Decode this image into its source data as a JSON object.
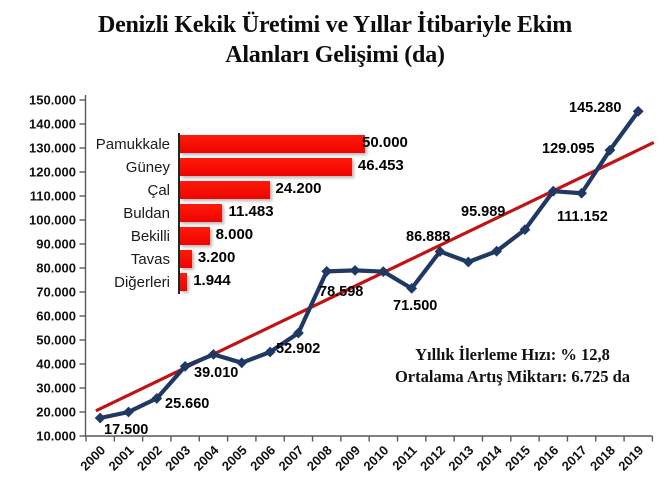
{
  "title": {
    "line1": "Denizli Kekik Üretimi ve Yıllar İtibariyle Ekim",
    "line2": "Alanları Gelişimi (da)"
  },
  "annotation": {
    "line1": "Yıllık İlerleme Hızı: % 12,8",
    "line2": "Ortalama Artış Miktarı: 6.725 da"
  },
  "colors": {
    "series_line": "#1F3864",
    "trend_line": "#C01414",
    "bar_fill": "#FF0000",
    "axis": "#595959",
    "label_text": "#000000"
  },
  "chart_data": [
    {
      "type": "line",
      "title": "Denizli Kekik Üretimi ve Yıllar İtibariyle Ekim Alanları Gelişimi (da)",
      "xlabel": "",
      "ylabel": "",
      "ylim": [
        10000,
        150000
      ],
      "ytick_step": 10000,
      "ytick_labels": [
        "10.000",
        "20.000",
        "30.000",
        "40.000",
        "50.000",
        "60.000",
        "70.000",
        "80.000",
        "90.000",
        "100.000",
        "110.000",
        "120.000",
        "130.000",
        "140.000",
        "150.000"
      ],
      "x": [
        2000,
        2001,
        2002,
        2003,
        2004,
        2005,
        2006,
        2007,
        2008,
        2009,
        2010,
        2011,
        2012,
        2013,
        2014,
        2015,
        2016,
        2017,
        2018,
        2019
      ],
      "values": [
        17500,
        20000,
        25660,
        39010,
        44000,
        40500,
        45000,
        52902,
        78598,
        79000,
        78500,
        71500,
        86888,
        82500,
        87000,
        95989,
        112000,
        111152,
        129095,
        145280
      ],
      "point_labels": {
        "2000": "17.500",
        "2002": "25.660",
        "2003": "39.010",
        "2007": "52.902",
        "2008": "78.598",
        "2011": "71.500",
        "2012": "86.888",
        "2015": "95.989",
        "2017": "111.152",
        "2018": "129.095",
        "2019": "145.280"
      },
      "trendline": {
        "x1": 1999.85,
        "v1": 20500,
        "x2": 2019.55,
        "v2": 132300
      },
      "grid": false,
      "legend": "none"
    },
    {
      "type": "bar",
      "orientation": "horizontal",
      "categories": [
        "Pamukkale",
        "Güney",
        "Çal",
        "Buldan",
        "Bekilli",
        "Tavas",
        "Diğerleri"
      ],
      "values": [
        50000,
        46453,
        24200,
        11483,
        8000,
        3200,
        1944
      ],
      "value_labels": [
        "50.000",
        "46.453",
        "24.200",
        "11.483",
        "8.000",
        "3.200",
        "1.944"
      ],
      "xlim": [
        0,
        50000
      ],
      "legend": "none"
    }
  ]
}
